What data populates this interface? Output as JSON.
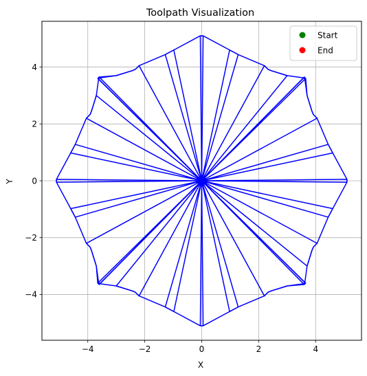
{
  "chart_data": {
    "type": "line",
    "title": "Toolpath Visualization",
    "xlabel": "X",
    "ylabel": "Y",
    "xlim": [
      -5.61,
      5.61
    ],
    "ylim": [
      -5.61,
      5.61
    ],
    "x_ticks": [
      -4,
      -2,
      0,
      2,
      4
    ],
    "y_ticks": [
      -4,
      -2,
      0,
      2,
      4
    ],
    "x_tick_labels": [
      "−4",
      "−2",
      "0",
      "2",
      "4"
    ],
    "y_tick_labels": [
      "−4",
      "−2",
      "0",
      "2",
      "4"
    ],
    "grid": true,
    "legend_position": "top-right",
    "legend": [
      {
        "label": "Start",
        "color": "#008000"
      },
      {
        "label": "End",
        "color": "#ff0000"
      }
    ],
    "path_color": "#0000ff",
    "series": [
      {
        "points": [
          [
            0,
            0
          ],
          [
            0.05,
            5.1
          ],
          [
            -0.05,
            5.1
          ],
          [
            0,
            0
          ],
          [
            -0.98,
            4.6
          ],
          [
            -1.28,
            4.44
          ],
          [
            0,
            0
          ],
          [
            -2.2,
            4.05
          ],
          [
            -2.33,
            3.92
          ],
          [
            -2.45,
            3.87
          ],
          [
            -3.0,
            3.7
          ],
          [
            -3.58,
            3.62
          ],
          [
            -3.62,
            3.58
          ],
          [
            0,
            0
          ],
          [
            -3.65,
            3.6
          ],
          [
            -3.6,
            3.65
          ],
          [
            0,
            0
          ],
          [
            -3.7,
            3.0
          ],
          [
            -3.87,
            2.45
          ],
          [
            -3.92,
            2.33
          ],
          [
            -4.05,
            2.2
          ],
          [
            0,
            0
          ],
          [
            -4.44,
            1.28
          ],
          [
            -4.6,
            0.98
          ],
          [
            0,
            0
          ],
          [
            -5.1,
            0.05
          ],
          [
            -5.1,
            -0.05
          ],
          [
            0,
            0
          ],
          [
            -4.6,
            -0.98
          ],
          [
            -4.44,
            -1.28
          ],
          [
            0,
            0
          ],
          [
            -4.05,
            -2.2
          ],
          [
            -3.92,
            -2.33
          ],
          [
            -3.87,
            -2.45
          ],
          [
            -3.7,
            -3.0
          ],
          [
            -3.62,
            -3.58
          ],
          [
            -3.58,
            -3.62
          ],
          [
            0,
            0
          ],
          [
            -3.6,
            -3.65
          ],
          [
            -3.65,
            -3.6
          ],
          [
            0,
            0
          ],
          [
            -3.0,
            -3.7
          ],
          [
            -2.45,
            -3.87
          ],
          [
            -2.33,
            -3.92
          ],
          [
            -2.2,
            -4.05
          ],
          [
            0,
            0
          ],
          [
            -1.28,
            -4.44
          ],
          [
            -0.98,
            -4.6
          ],
          [
            0,
            0
          ],
          [
            -0.05,
            -5.1
          ],
          [
            0.05,
            -5.1
          ],
          [
            0,
            0
          ],
          [
            0.98,
            -4.6
          ],
          [
            1.28,
            -4.44
          ],
          [
            0,
            0
          ],
          [
            2.2,
            -4.05
          ],
          [
            2.33,
            -3.92
          ],
          [
            2.45,
            -3.87
          ],
          [
            3.0,
            -3.7
          ],
          [
            3.58,
            -3.62
          ],
          [
            3.62,
            -3.58
          ],
          [
            0,
            0
          ],
          [
            3.65,
            -3.6
          ],
          [
            3.6,
            -3.65
          ],
          [
            0,
            0
          ],
          [
            3.7,
            -3.0
          ],
          [
            3.87,
            -2.45
          ],
          [
            3.92,
            -2.33
          ],
          [
            4.05,
            -2.2
          ],
          [
            0,
            0
          ],
          [
            4.44,
            -1.28
          ],
          [
            4.6,
            -0.98
          ],
          [
            0,
            0
          ],
          [
            5.1,
            -0.05
          ],
          [
            5.1,
            0.05
          ],
          [
            0,
            0
          ],
          [
            4.6,
            0.98
          ],
          [
            4.44,
            1.28
          ],
          [
            0,
            0
          ],
          [
            4.05,
            2.2
          ],
          [
            3.92,
            2.33
          ],
          [
            3.87,
            2.45
          ],
          [
            3.7,
            3.0
          ],
          [
            3.62,
            3.58
          ],
          [
            3.58,
            3.62
          ],
          [
            0,
            0
          ],
          [
            3.6,
            3.65
          ],
          [
            3.65,
            3.6
          ],
          [
            0,
            0
          ],
          [
            3.0,
            3.7
          ],
          [
            2.45,
            3.87
          ],
          [
            2.33,
            3.92
          ],
          [
            2.2,
            4.05
          ],
          [
            0,
            0
          ],
          [
            1.28,
            4.44
          ],
          [
            0.98,
            4.6
          ],
          [
            0,
            0
          ]
        ]
      }
    ],
    "outline": {
      "points": [
        [
          0.05,
          5.1
        ],
        [
          0.98,
          4.6
        ],
        [
          1.28,
          4.44
        ],
        [
          2.2,
          4.05
        ],
        [
          2.33,
          3.92
        ],
        [
          2.45,
          3.87
        ],
        [
          3.0,
          3.7
        ],
        [
          3.58,
          3.62
        ],
        [
          3.65,
          3.6
        ],
        [
          3.7,
          3.0
        ],
        [
          3.87,
          2.45
        ],
        [
          3.92,
          2.33
        ],
        [
          4.05,
          2.2
        ],
        [
          4.44,
          1.28
        ],
        [
          4.6,
          0.98
        ],
        [
          5.1,
          0.05
        ],
        [
          5.1,
          -0.05
        ],
        [
          4.6,
          -0.98
        ],
        [
          4.44,
          -1.28
        ],
        [
          4.05,
          -2.2
        ],
        [
          3.92,
          -2.33
        ],
        [
          3.87,
          -2.45
        ],
        [
          3.7,
          -3.0
        ],
        [
          3.62,
          -3.58
        ],
        [
          3.6,
          -3.65
        ],
        [
          3.0,
          -3.7
        ],
        [
          2.45,
          -3.87
        ],
        [
          2.33,
          -3.92
        ],
        [
          2.2,
          -4.05
        ],
        [
          1.28,
          -4.44
        ],
        [
          0.98,
          -4.6
        ],
        [
          0.05,
          -5.1
        ],
        [
          -0.05,
          -5.1
        ],
        [
          -0.98,
          -4.6
        ],
        [
          -1.28,
          -4.44
        ],
        [
          -2.2,
          -4.05
        ],
        [
          -2.33,
          -3.92
        ],
        [
          -2.45,
          -3.87
        ],
        [
          -3.0,
          -3.7
        ],
        [
          -3.58,
          -3.62
        ],
        [
          -3.65,
          -3.6
        ],
        [
          -3.7,
          -3.0
        ],
        [
          -3.87,
          -2.45
        ],
        [
          -3.92,
          -2.33
        ],
        [
          -4.05,
          -2.2
        ],
        [
          -4.44,
          -1.28
        ],
        [
          -4.6,
          -0.98
        ],
        [
          -5.1,
          -0.05
        ],
        [
          -5.1,
          0.05
        ],
        [
          -4.6,
          0.98
        ],
        [
          -4.44,
          1.28
        ],
        [
          -4.05,
          2.2
        ],
        [
          -3.92,
          2.33
        ],
        [
          -3.87,
          2.45
        ],
        [
          -3.7,
          3.0
        ],
        [
          -3.62,
          3.58
        ],
        [
          -3.6,
          3.65
        ],
        [
          -3.0,
          3.7
        ],
        [
          -2.45,
          3.87
        ],
        [
          -2.33,
          3.92
        ],
        [
          -2.2,
          4.05
        ],
        [
          -1.28,
          4.44
        ],
        [
          -0.98,
          4.6
        ],
        [
          -0.05,
          5.1
        ],
        [
          0.05,
          5.1
        ]
      ]
    },
    "start_point": [
      0,
      0
    ],
    "end_point": [
      0,
      0
    ]
  }
}
